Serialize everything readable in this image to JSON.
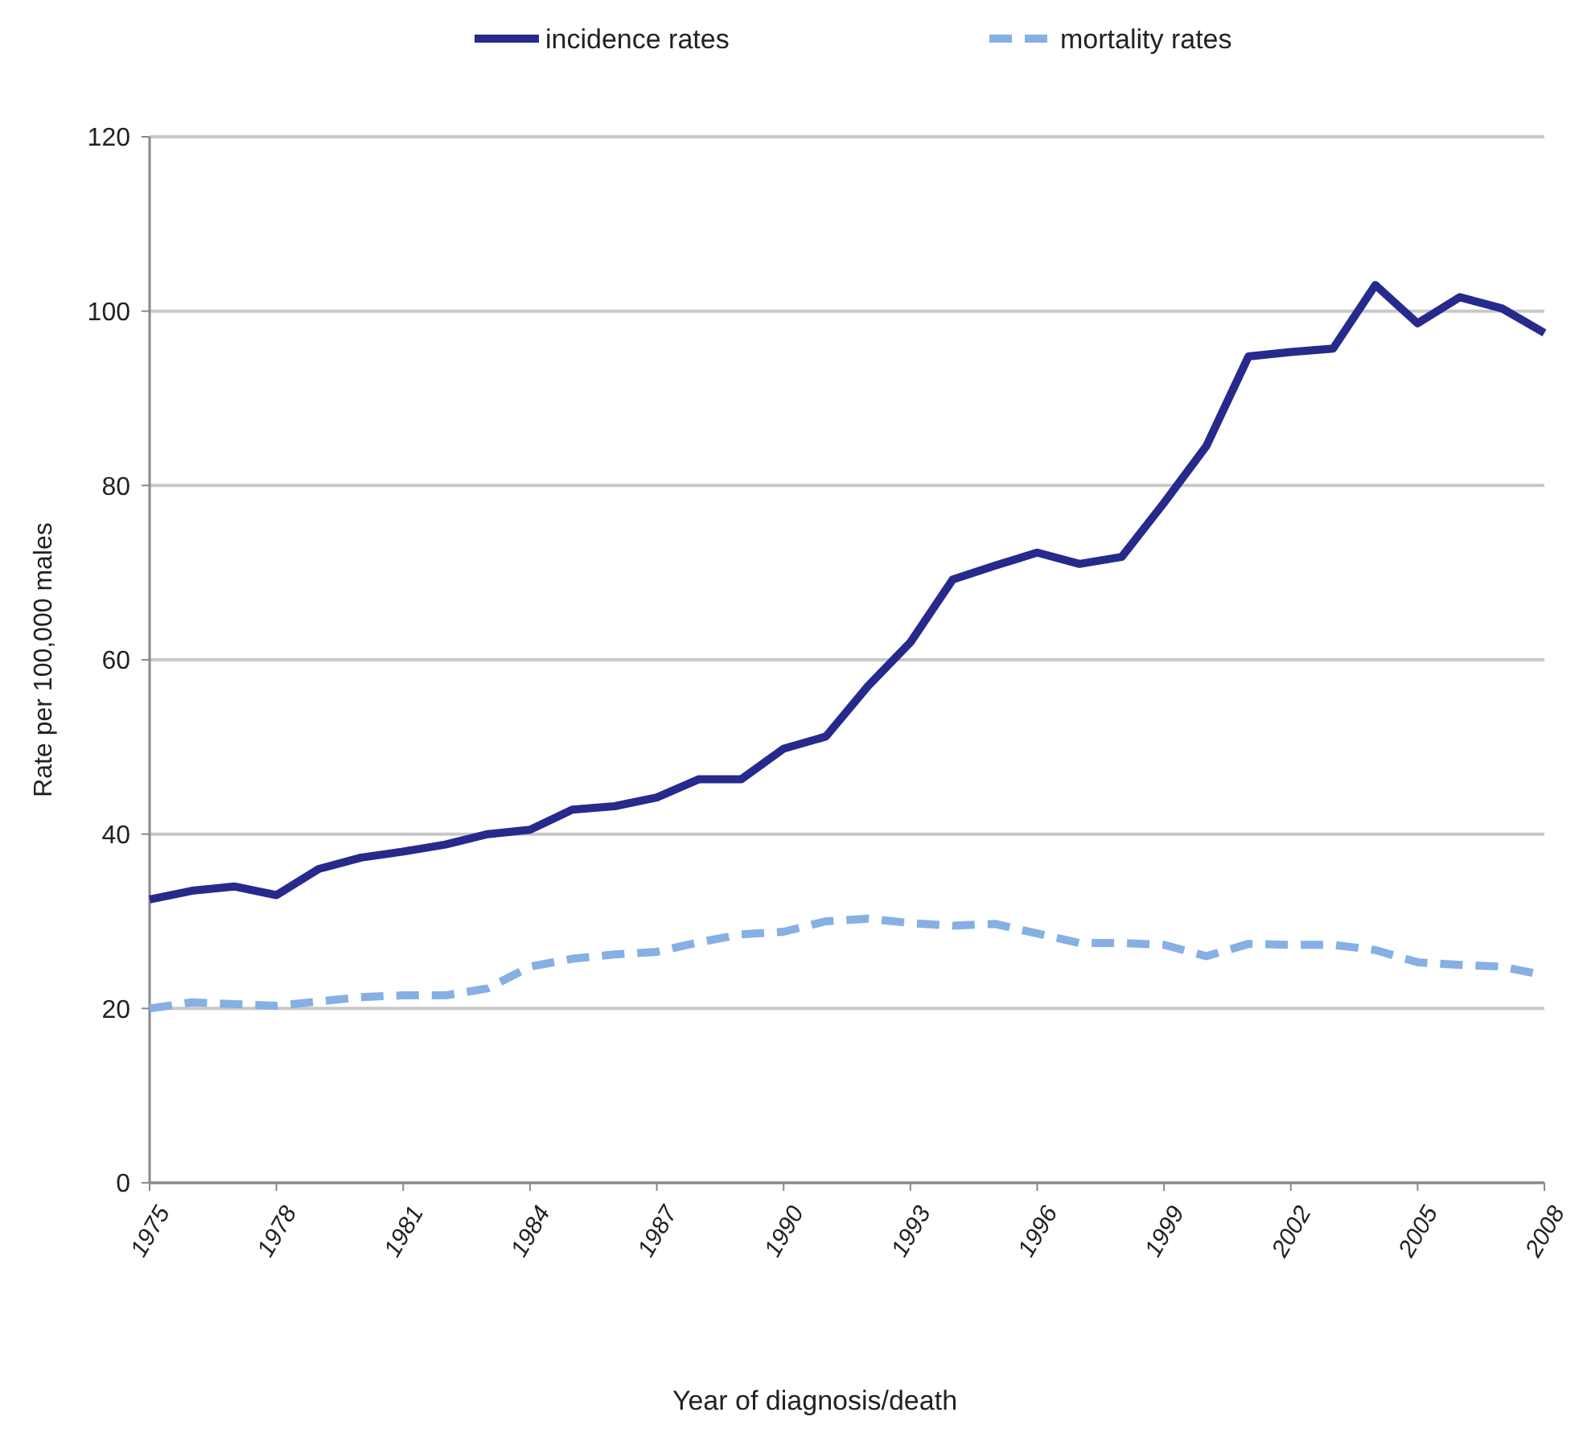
{
  "chart_data": {
    "type": "line",
    "xlabel": "Year of diagnosis/death",
    "ylabel": "Rate per 100,000 males",
    "x": [
      1975,
      1976,
      1977,
      1978,
      1979,
      1980,
      1981,
      1982,
      1983,
      1984,
      1985,
      1986,
      1987,
      1988,
      1989,
      1990,
      1991,
      1992,
      1993,
      1994,
      1995,
      1996,
      1997,
      1998,
      1999,
      2000,
      2001,
      2002,
      2003,
      2004,
      2005,
      2006,
      2007,
      2008
    ],
    "series": [
      {
        "name": "incidence rates",
        "color": "#262a8c",
        "line_style": "solid",
        "values": [
          32.5,
          33.5,
          34,
          33,
          36,
          37.3,
          38,
          38.8,
          40,
          40.5,
          42.8,
          43.2,
          44.2,
          46.3,
          46.3,
          49.8,
          51.2,
          57,
          62,
          69.2,
          70.8,
          72.3,
          71,
          71.8,
          78,
          84.5,
          94.8,
          95.3,
          95.7,
          103,
          98.6,
          101.6,
          100.3,
          97.5
        ]
      },
      {
        "name": "mortality rates",
        "color": "#86b0e4",
        "line_style": "dashed",
        "values": [
          20,
          20.7,
          20.5,
          20.3,
          20.8,
          21.3,
          21.5,
          21.5,
          22.3,
          24.8,
          25.7,
          26.2,
          26.5,
          27.6,
          28.5,
          28.8,
          30,
          30.3,
          29.8,
          29.5,
          29.7,
          28.6,
          27.5,
          27.5,
          27.3,
          26,
          27.4,
          27.3,
          27.3,
          26.7,
          25.3,
          25,
          24.8,
          23.8
        ]
      }
    ],
    "xlim": [
      1975,
      2008
    ],
    "xticks": [
      1975,
      1978,
      1981,
      1984,
      1987,
      1990,
      1993,
      1996,
      1999,
      2002,
      2005,
      2008
    ],
    "ylim": [
      0,
      120
    ],
    "yticks": [
      0,
      20,
      40,
      60,
      80,
      100,
      120
    ],
    "grid": "y",
    "legend": "top",
    "marker": "none"
  }
}
